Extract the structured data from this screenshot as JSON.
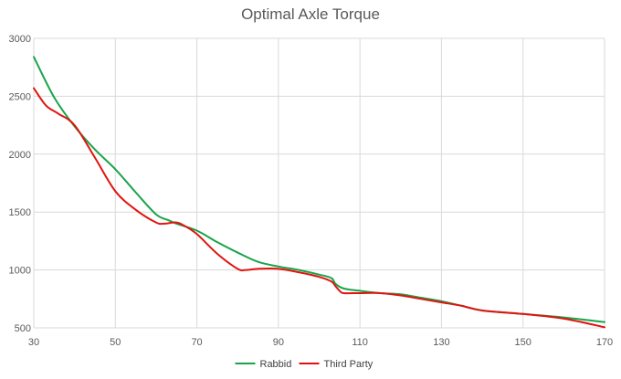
{
  "chart_data": {
    "type": "line",
    "title": "Optimal Axle Torque",
    "xlabel": "",
    "ylabel": "",
    "xlim": [
      30,
      170
    ],
    "ylim": [
      500,
      3000
    ],
    "x_ticks": [
      30,
      50,
      70,
      90,
      110,
      130,
      150,
      170
    ],
    "y_ticks": [
      500,
      1000,
      1500,
      2000,
      2500,
      3000
    ],
    "grid": true,
    "legend_position": "bottom",
    "series": [
      {
        "name": "Rabbid",
        "color": "#1aa34a",
        "x": [
          30,
          35,
          40,
          45,
          50,
          55,
          60,
          63,
          65,
          70,
          75,
          80,
          85,
          90,
          95,
          100,
          103,
          104,
          106,
          110,
          115,
          120,
          125,
          130,
          135,
          140,
          150,
          160,
          170
        ],
        "y": [
          2840,
          2490,
          2240,
          2040,
          1870,
          1670,
          1480,
          1430,
          1400,
          1340,
          1240,
          1150,
          1070,
          1030,
          1000,
          960,
          930,
          880,
          840,
          820,
          800,
          790,
          760,
          730,
          690,
          650,
          620,
          590,
          550
        ]
      },
      {
        "name": "Third Party",
        "color": "#e0140f",
        "x": [
          30,
          33,
          36,
          40,
          45,
          50,
          55,
          60,
          62,
          65,
          67,
          70,
          75,
          80,
          82,
          85,
          90,
          95,
          100,
          103,
          104,
          105,
          106,
          110,
          115,
          120,
          125,
          130,
          135,
          140,
          150,
          160,
          170
        ],
        "y": [
          2570,
          2420,
          2350,
          2250,
          1970,
          1680,
          1520,
          1410,
          1400,
          1410,
          1380,
          1310,
          1140,
          1010,
          1000,
          1010,
          1010,
          980,
          940,
          900,
          860,
          820,
          800,
          800,
          800,
          780,
          750,
          720,
          690,
          650,
          620,
          580,
          505
        ]
      }
    ]
  }
}
